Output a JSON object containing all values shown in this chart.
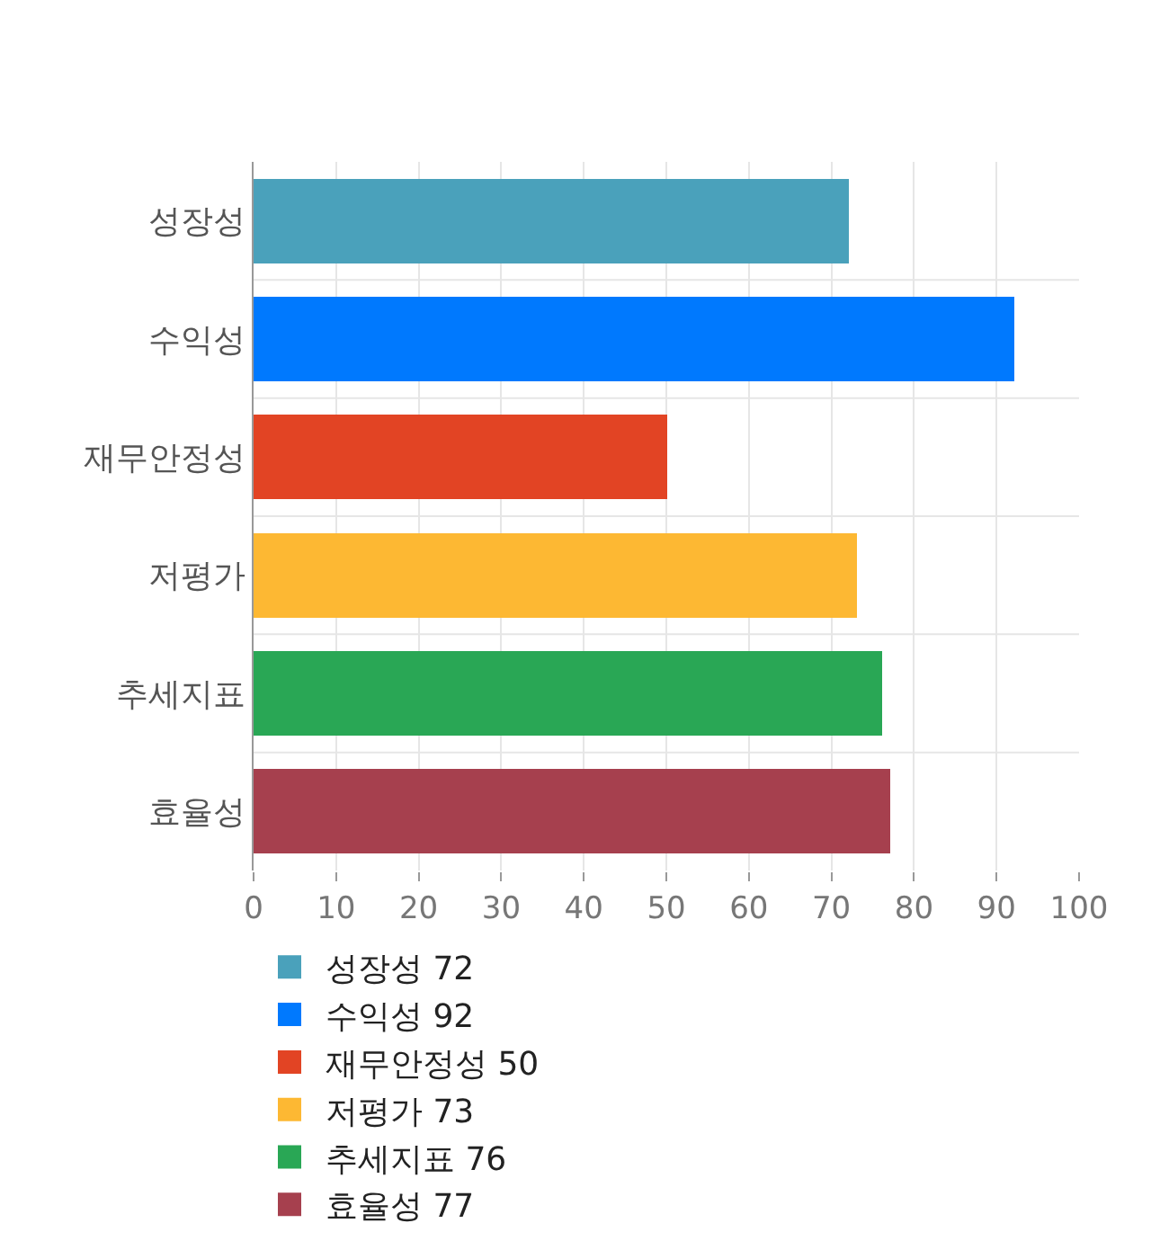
{
  "chart_data": {
    "type": "bar",
    "orientation": "horizontal",
    "stacked": true,
    "categories": [
      "성장성",
      "수익성",
      "재무안정성",
      "저평가",
      "추세지표",
      "효율성"
    ],
    "series": [
      {
        "name": "성장성 72",
        "color": "#4aa1bb",
        "values": [
          72,
          null,
          null,
          null,
          null,
          null
        ]
      },
      {
        "name": "수익성 92",
        "color": "#0079fe",
        "values": [
          null,
          92,
          null,
          null,
          null,
          null
        ]
      },
      {
        "name": "재무안정성 50",
        "color": "#e24424",
        "values": [
          null,
          null,
          50,
          null,
          null,
          null
        ]
      },
      {
        "name": "저평가 73",
        "color": "#fdb833",
        "values": [
          null,
          null,
          null,
          73,
          null,
          null
        ]
      },
      {
        "name": "추세지표 76",
        "color": "#29a755",
        "values": [
          null,
          null,
          null,
          null,
          76,
          null
        ]
      },
      {
        "name": "효율성 77",
        "color": "#a6404e",
        "values": [
          null,
          null,
          null,
          null,
          null,
          77
        ]
      }
    ],
    "xlim": [
      0,
      100
    ],
    "xticks": [
      0,
      10,
      20,
      30,
      40,
      50,
      60,
      70,
      80,
      90,
      100
    ],
    "grid": true,
    "legend": "bottom"
  }
}
